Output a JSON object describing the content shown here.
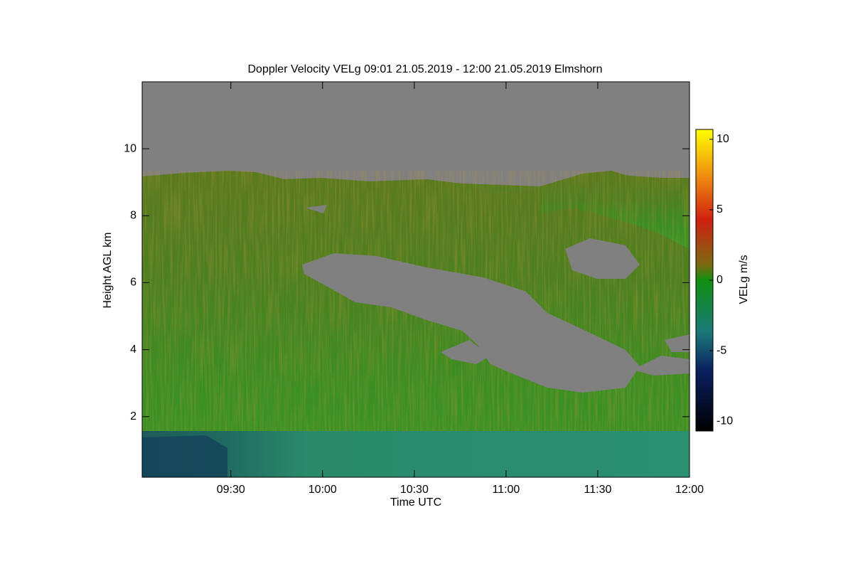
{
  "chart_data": {
    "type": "heatmap",
    "title": "Doppler Velocity VELg   09:01 21.05.2019 - 12:00 21.05.2019 Elmshorn",
    "x_label": "Time UTC",
    "y_label": "Height AGL km",
    "xlim": [
      9.0167,
      12
    ],
    "xticks": [
      {
        "value": 9.5,
        "label": "09:30"
      },
      {
        "value": 10,
        "label": "10:00"
      },
      {
        "value": 10.5,
        "label": "10:30"
      },
      {
        "value": 11,
        "label": "11:00"
      },
      {
        "value": 11.5,
        "label": "11:30"
      },
      {
        "value": 12,
        "label": "12:00"
      }
    ],
    "ylim": [
      0.19,
      12
    ],
    "yticks": [
      2,
      4,
      6,
      8,
      10
    ],
    "colorbar": {
      "label": "VELg m/s",
      "lim": [
        -10.7,
        10.7
      ],
      "ticks": [
        -10,
        -5,
        0,
        5,
        10
      ]
    }
  }
}
